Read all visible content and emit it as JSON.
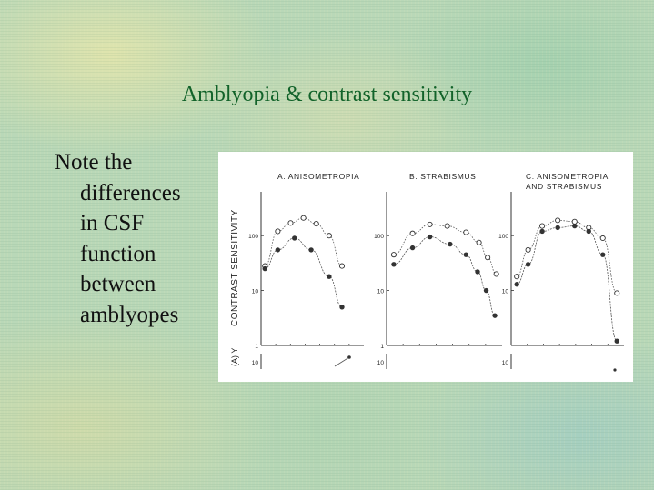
{
  "slide": {
    "title": "Amblyopia & contrast sensitivity",
    "note_lines": [
      "Note the",
      "differences",
      "in CSF",
      "function",
      "between",
      "amblyopes"
    ]
  },
  "figure": {
    "ylabel": "CONTRAST  SENSITIVITY",
    "lower_label": "(A) Y",
    "lower_tick": "10"
  },
  "chart_data": [
    {
      "type": "line",
      "title": "A.  ANISOMETROPIA",
      "ylabel": "CONTRAST  SENSITIVITY",
      "yscale": "log",
      "ylim": [
        1,
        500
      ],
      "yticks": [
        "100",
        "10",
        "1"
      ],
      "xlim": [
        0,
        8
      ],
      "series": [
        {
          "marker": "open",
          "x": [
            0.3,
            1.3,
            2.3,
            3.3,
            4.3,
            5.3,
            6.3
          ],
          "y": [
            28,
            120,
            170,
            210,
            165,
            100,
            28
          ]
        },
        {
          "marker": "filled",
          "x": [
            0.3,
            1.3,
            2.6,
            3.9,
            5.3,
            6.3
          ],
          "y": [
            25,
            55,
            90,
            55,
            18,
            5
          ]
        }
      ]
    },
    {
      "type": "line",
      "title": "B.  STRABISMUS",
      "yscale": "log",
      "ylim": [
        1,
        500
      ],
      "yticks": [
        "100",
        "10",
        "1"
      ],
      "xlim": [
        0,
        8
      ],
      "series": [
        {
          "marker": "open",
          "x": [
            0.5,
            1.8,
            3.0,
            4.2,
            5.5,
            6.4,
            7.0,
            7.6
          ],
          "y": [
            45,
            110,
            160,
            150,
            115,
            75,
            40,
            20
          ]
        },
        {
          "marker": "filled",
          "x": [
            0.5,
            1.8,
            3.0,
            4.4,
            5.5,
            6.3,
            6.9,
            7.5
          ],
          "y": [
            30,
            60,
            95,
            70,
            45,
            22,
            10,
            3.5
          ]
        }
      ]
    },
    {
      "type": "line",
      "title": "C.  ANISOMETROPIA\nAND STRABISMUS",
      "yscale": "log",
      "ylim": [
        1,
        500
      ],
      "yticks": [
        "100",
        "10"
      ],
      "xlim": [
        0,
        8
      ],
      "series": [
        {
          "marker": "open",
          "x": [
            0.4,
            1.2,
            2.2,
            3.3,
            4.5,
            5.5,
            6.5,
            7.5
          ],
          "y": [
            18,
            55,
            150,
            190,
            180,
            140,
            90,
            9
          ]
        },
        {
          "marker": "filled",
          "x": [
            0.4,
            1.2,
            2.2,
            3.3,
            4.5,
            5.5,
            6.5,
            7.5
          ],
          "y": [
            13,
            30,
            120,
            140,
            150,
            120,
            45,
            1.2
          ]
        }
      ]
    }
  ]
}
